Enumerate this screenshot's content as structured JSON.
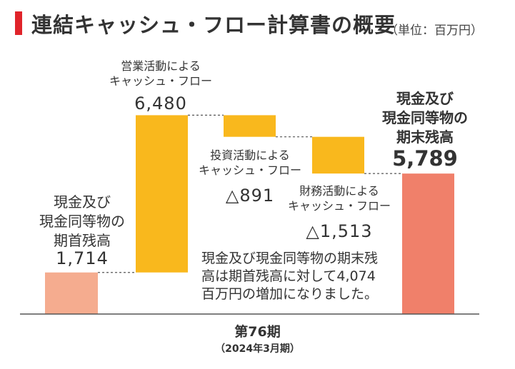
{
  "header": {
    "title": "連結キャッシュ・フロー計算書の概要",
    "unit": "（単位：百万円）"
  },
  "colors": {
    "accent": "#e0242a",
    "opening_bar": "#f5ac8f",
    "flow_bar": "#f9b81d",
    "closing_bar": "#f0806a",
    "baseline": "#555555",
    "connector": "#555555"
  },
  "chart_data": {
    "type": "waterfall",
    "items": [
      {
        "key": "opening",
        "label_lines": [
          "現金及び",
          "現金同等物の",
          "期首残高"
        ],
        "value_text": "1,714",
        "value": 1714
      },
      {
        "key": "operating",
        "label_lines": [
          "営業活動による",
          "キャッシュ・フロー"
        ],
        "value_text": "6,480",
        "value": 6480
      },
      {
        "key": "investing",
        "label_lines": [
          "投資活動による",
          "キャッシュ・フロー"
        ],
        "value_text": "△891",
        "value": -891
      },
      {
        "key": "financing",
        "label_lines": [
          "財務活動による",
          "キャッシュ・フロー"
        ],
        "value_text": "△1,513",
        "value": -1513
      },
      {
        "key": "closing",
        "label_lines": [
          "現金及び",
          "現金同等物の",
          "期末残高"
        ],
        "value_text": "5,789",
        "value": 5789
      }
    ],
    "note_lines": [
      "現金及び現金同等物の期末残",
      "高は期首残高に対して4,074",
      "百万円の増加になりました。"
    ],
    "period_label": "第76期",
    "period_sub": "（2024年3月期）"
  }
}
